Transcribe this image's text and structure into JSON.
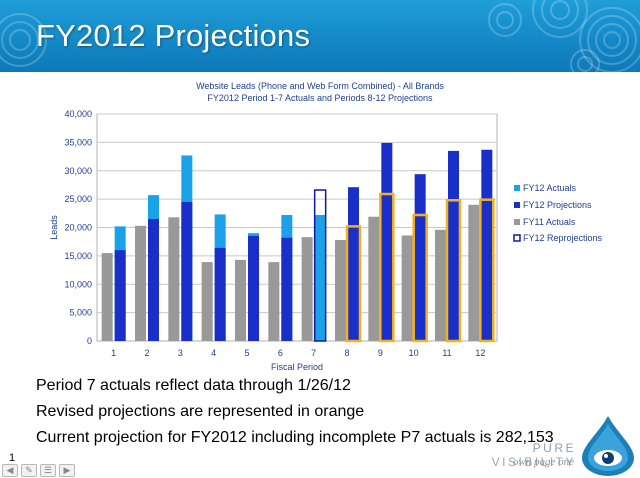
{
  "slide": {
    "title": "FY2012 Projections",
    "page_number": "1",
    "notes": [
      "Period 7 actuals reflect data through 1/26/12",
      "Revised projections are represented in orange",
      "Current projection for FY2012 including incomplete P7 actuals is 282,153"
    ],
    "logo": {
      "word1": "PURE",
      "word2": "VISIBILITY",
      "tagline": "own page one"
    }
  },
  "colors": {
    "banner": "#1a90ce",
    "fy12_actuals": "#1aa1e8",
    "fy12_projections": "#1a2fc9",
    "fy11_actuals": "#999999",
    "reprojection_orange": "#f5b11c",
    "reprojection_navy": "#10199e"
  },
  "chart_data": {
    "type": "bar",
    "title": "Website Leads (Phone and Web Form Combined) - All Brands",
    "subtitle": "FY2012 Period 1-7 Actuals and Periods 8-12 Projections",
    "xlabel": "Fiscal Period",
    "ylabel": "Leads",
    "ylim": [
      0,
      40000
    ],
    "yticks": [
      0,
      5000,
      10000,
      15000,
      20000,
      25000,
      30000,
      35000,
      40000
    ],
    "ytick_labels": [
      "0",
      "5,000",
      "10,000",
      "15,000",
      "20,000",
      "25,000",
      "30,000",
      "35,000",
      "40,000"
    ],
    "categories": [
      "1",
      "2",
      "3",
      "4",
      "5",
      "6",
      "7",
      "8",
      "9",
      "10",
      "11",
      "12"
    ],
    "gridlines": true,
    "legend_position": "right",
    "series": [
      {
        "name": "FY12 Actuals",
        "values": [
          20200,
          25700,
          32700,
          22300,
          19000,
          22200,
          22200,
          null,
          null,
          null,
          null,
          null
        ]
      },
      {
        "name": "FY12 Projections",
        "values": [
          16000,
          21500,
          24500,
          16400,
          18500,
          18200,
          null,
          27100,
          34900,
          29400,
          33500,
          33700
        ]
      },
      {
        "name": "FY11 Actuals",
        "values": [
          15500,
          20300,
          21800,
          13900,
          14300,
          13900,
          18300,
          17800,
          21900,
          18600,
          19600,
          24000
        ]
      },
      {
        "name": "FY12 Reprojections",
        "values": [
          null,
          null,
          null,
          null,
          null,
          null,
          26600,
          20200,
          25900,
          22200,
          24800,
          24900
        ]
      }
    ],
    "reprojection_style": {
      "navy_outline_periods": [
        "7"
      ],
      "orange_outline_periods": [
        "8",
        "9",
        "10",
        "11",
        "12"
      ]
    }
  }
}
